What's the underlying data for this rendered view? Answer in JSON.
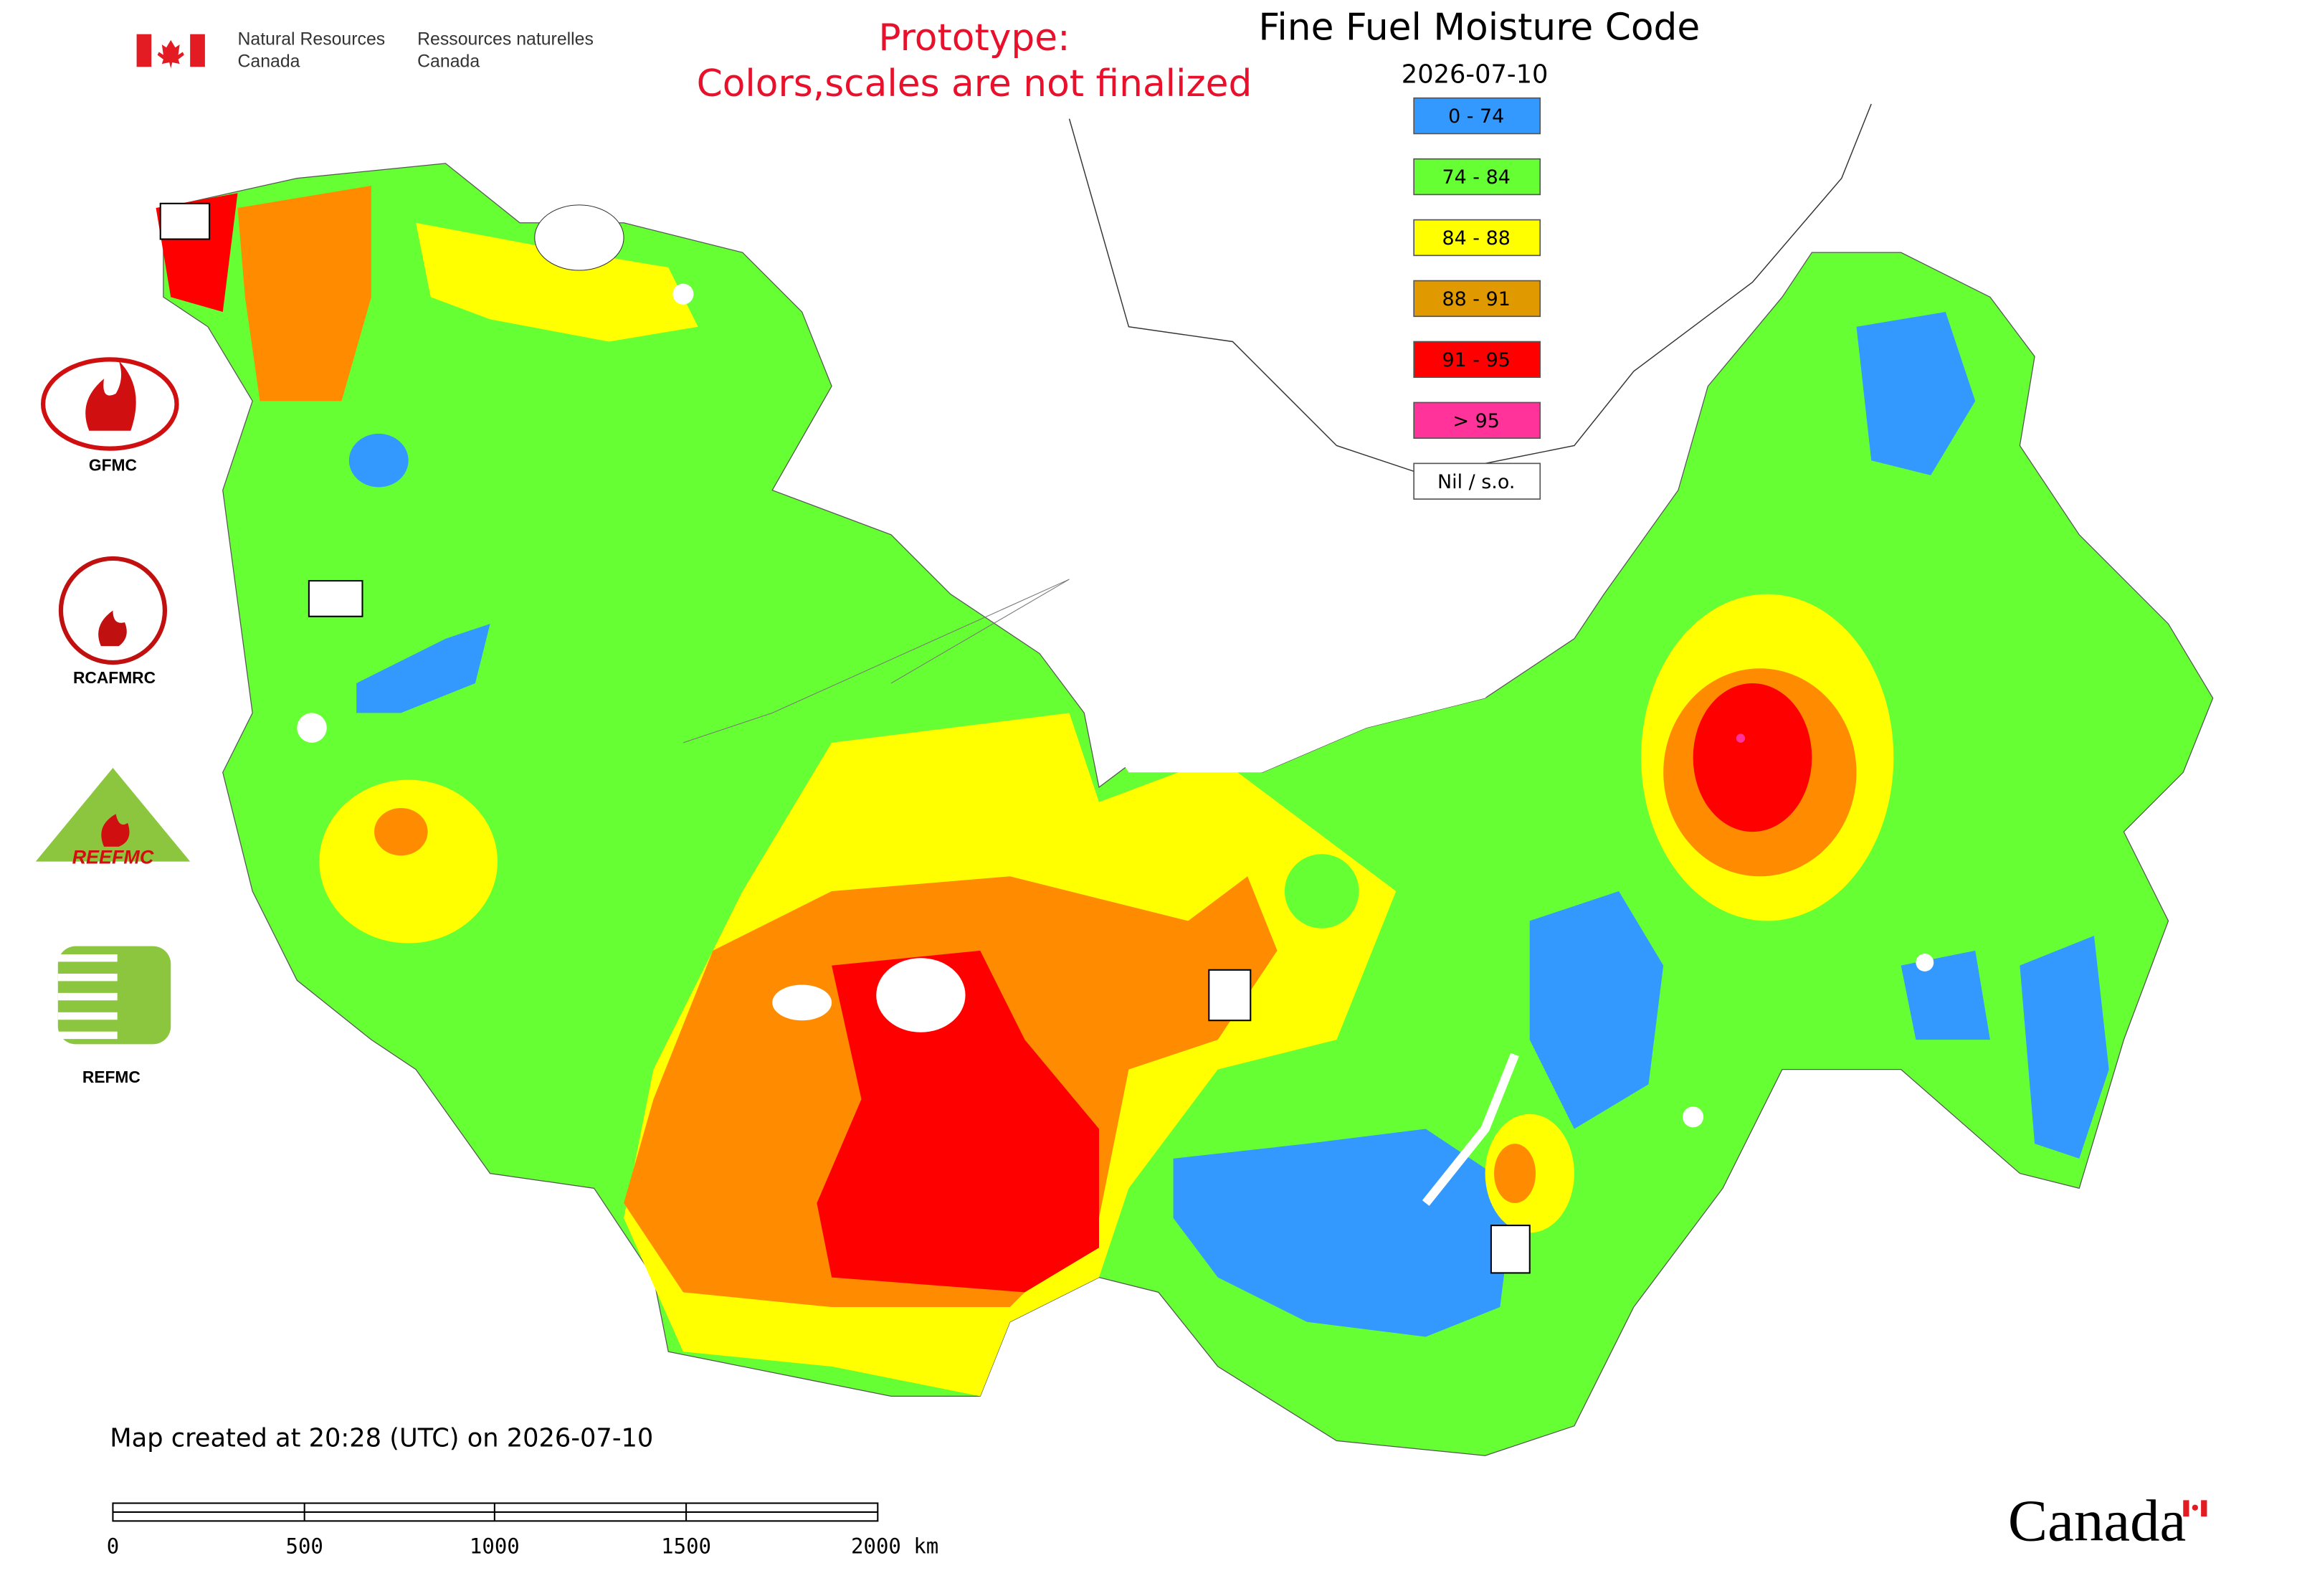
{
  "header": {
    "department_en": [
      "Natural Resources",
      "Canada"
    ],
    "department_fr": [
      "Ressources naturelles",
      "Canada"
    ]
  },
  "notice": [
    "Prototype:",
    "Colors,scales are not finalized"
  ],
  "title": "Fine Fuel Moisture Code",
  "date": "2026-07-10",
  "legend": [
    {
      "label": "0 - 74",
      "color": "#3399ff"
    },
    {
      "label": "74 - 84",
      "color": "#66ff33"
    },
    {
      "label": "84 - 88",
      "color": "#ffff00"
    },
    {
      "label": "88 - 91",
      "color": "#e09a00"
    },
    {
      "label": "91 - 95",
      "color": "#ff0000"
    },
    {
      "label": "> 95",
      "color": "#ff3399"
    },
    {
      "label": "Nil / s.o.",
      "color": "#ffffff"
    }
  ],
  "logos": [
    "GFMC",
    "RCAFMRC",
    "REEFMC",
    "REFMC"
  ],
  "created": "Map created at 20:28 (UTC) on 2026-07-10",
  "scale_bar": [
    "0",
    "500",
    "1000",
    "1500",
    "2000 km"
  ],
  "wordmark": "Canada"
}
